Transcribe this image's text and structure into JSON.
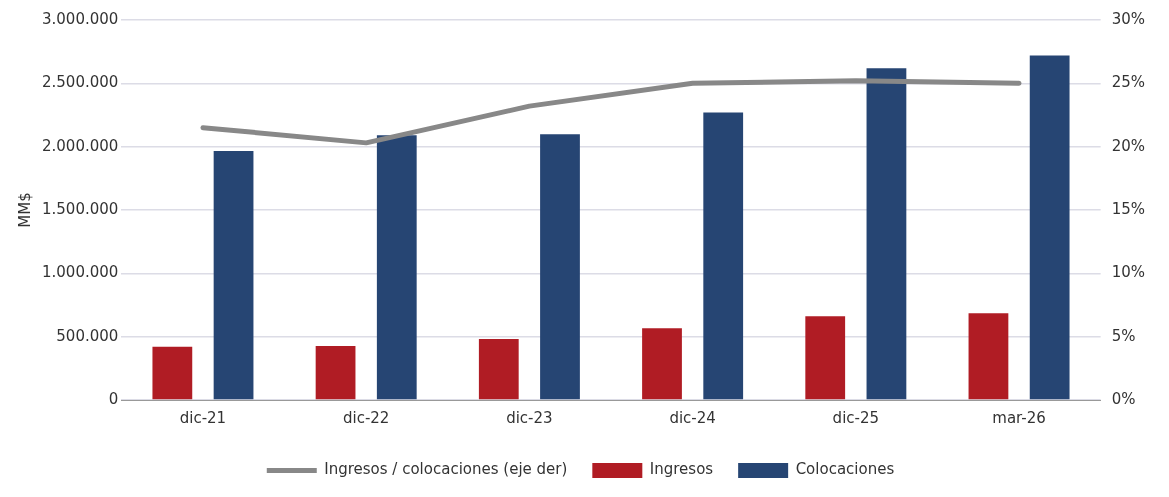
{
  "chart_data": {
    "type": "bar",
    "ylabel": "MM$",
    "categories": [
      "dic-21",
      "dic-22",
      "dic-23",
      "dic-24",
      "dic-25",
      "mar-26"
    ],
    "series": [
      {
        "name": "Ingresos",
        "color": "#b01c24",
        "values": [
          420000,
          427000,
          482000,
          567000,
          661000,
          684000
        ]
      },
      {
        "name": "Colocaciones",
        "color": "#264573",
        "values": [
          1966000,
          2091000,
          2098000,
          2270000,
          2619000,
          2720000
        ]
      },
      {
        "name": "Ingresos / colocaciones (eje der)",
        "type": "line",
        "axis": "y2",
        "color": "#888888",
        "values": [
          21.5,
          20.3,
          23.2,
          25.0,
          25.2,
          25.0
        ]
      }
    ],
    "ylim": [
      0,
      3000000
    ],
    "yticks": [
      {
        "value": 0,
        "label": "0"
      },
      {
        "value": 500000,
        "label": "500.000"
      },
      {
        "value": 1000000,
        "label": "1.000.000"
      },
      {
        "value": 1500000,
        "label": "1.500.000"
      },
      {
        "value": 2000000,
        "label": "2.000.000"
      },
      {
        "value": 2500000,
        "label": "2.500.000"
      },
      {
        "value": 3000000,
        "label": "3.000.000"
      }
    ],
    "y2lim": [
      0,
      30
    ],
    "y2ticks": [
      {
        "value": 0,
        "label": "0%"
      },
      {
        "value": 5,
        "label": "5%"
      },
      {
        "value": 10,
        "label": "10%"
      },
      {
        "value": 15,
        "label": "15%"
      },
      {
        "value": 20,
        "label": "20%"
      },
      {
        "value": 25,
        "label": "25%"
      },
      {
        "value": 30,
        "label": "30%"
      }
    ],
    "grid": "y",
    "legend": "bottom",
    "marker": "none"
  }
}
